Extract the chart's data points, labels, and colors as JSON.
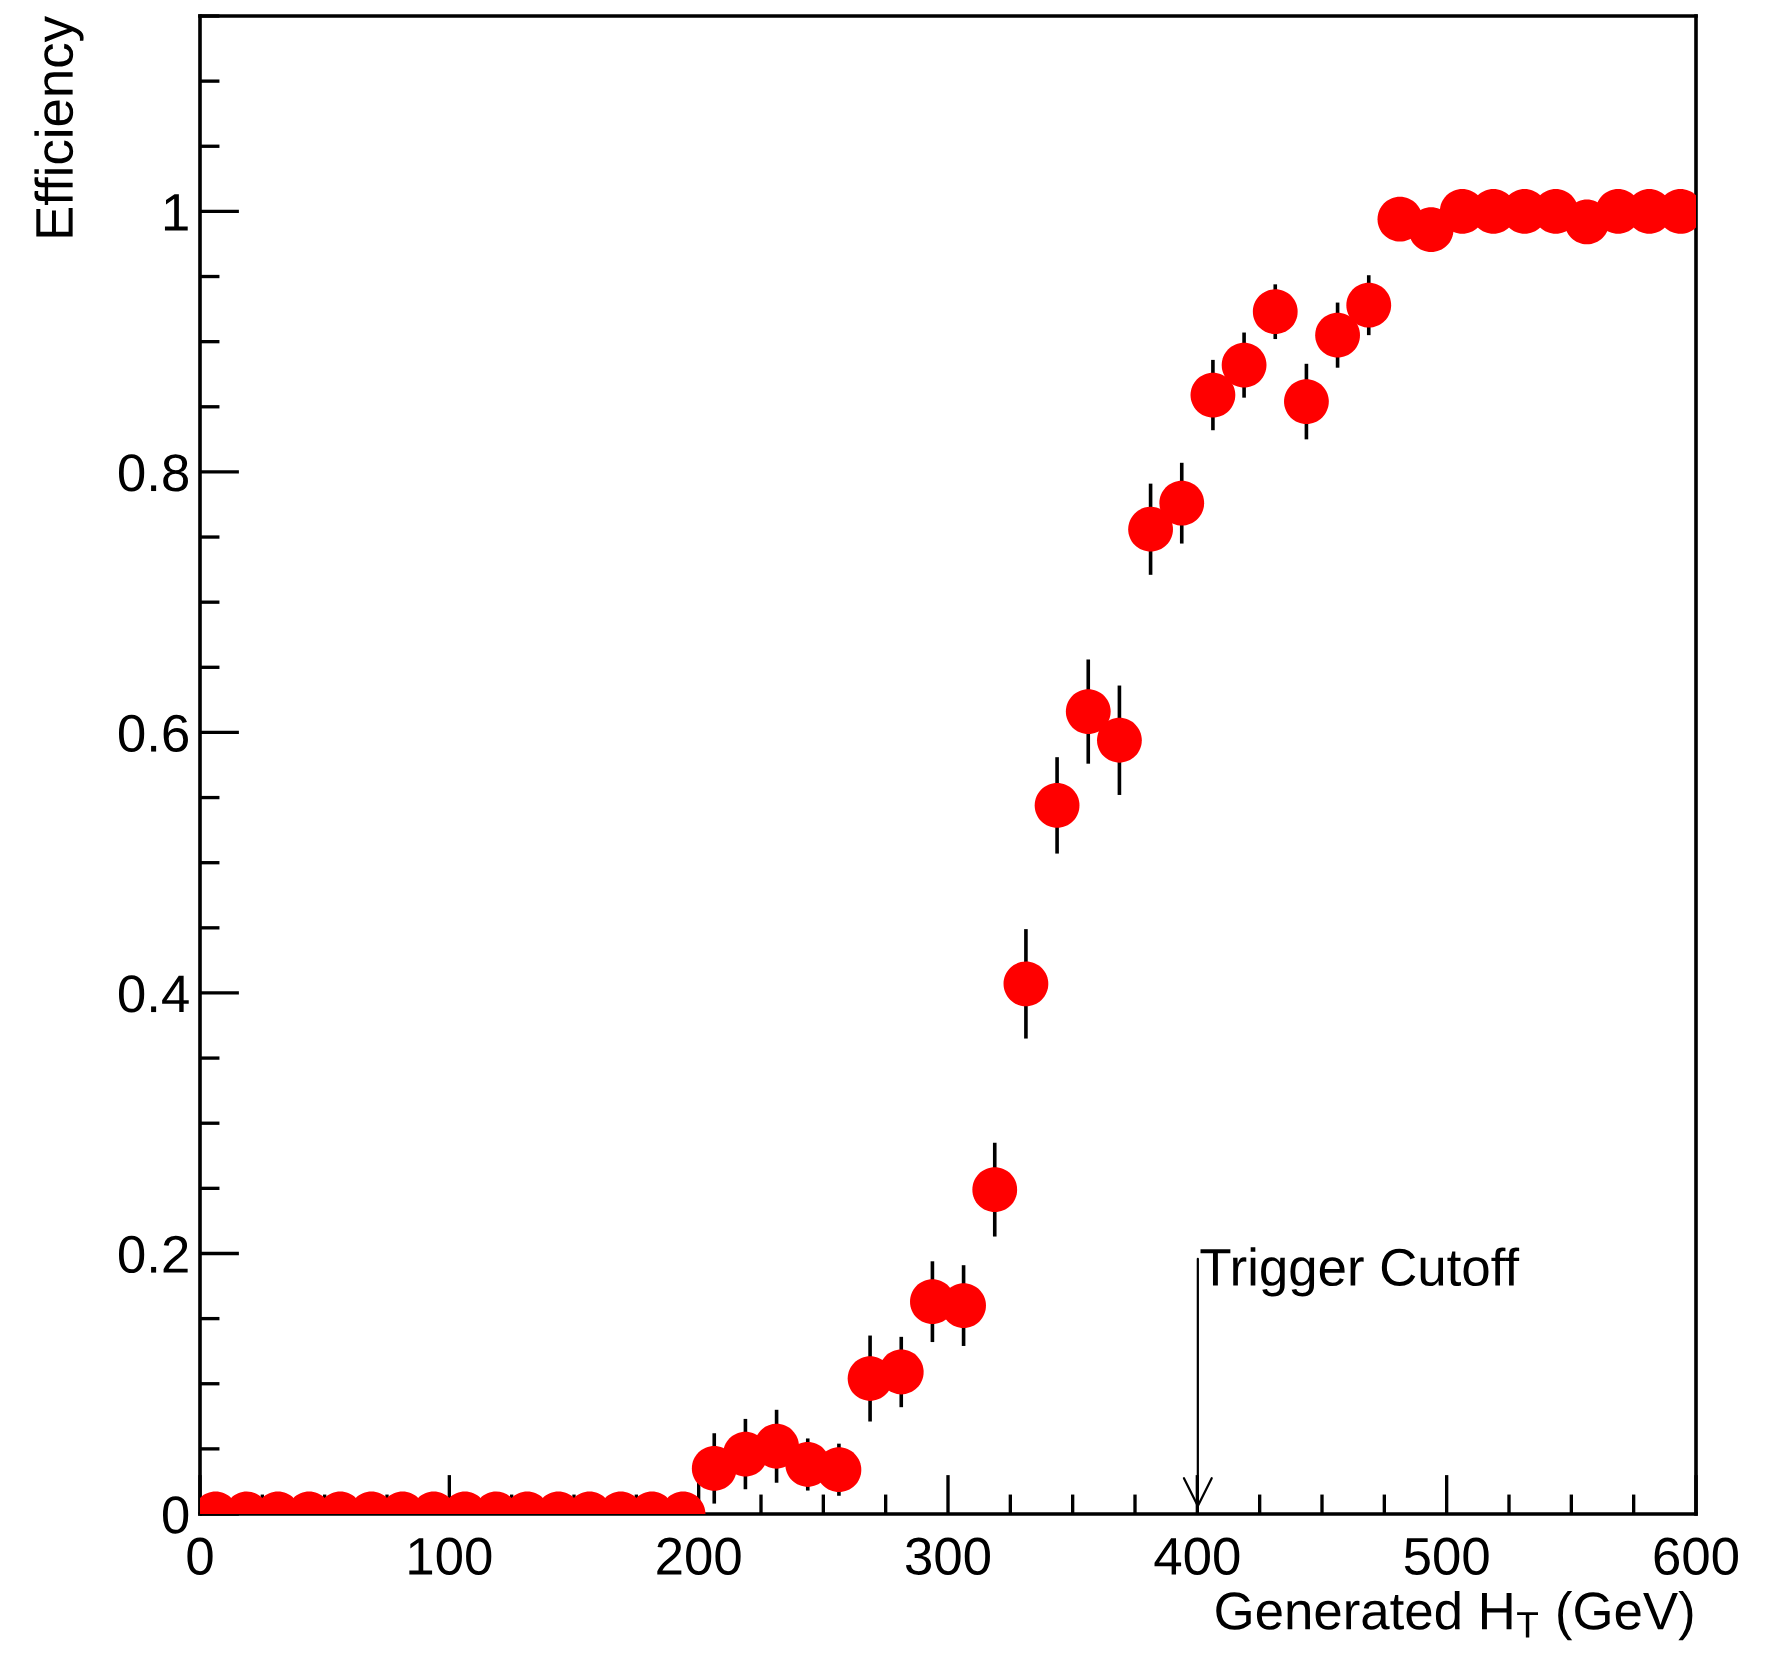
{
  "chart_data": {
    "type": "scatter",
    "xlabel": "Generated H$_{T}$ (GeV)",
    "ylabel": "Efficiency",
    "x": [
      6.25,
      18.75,
      31.25,
      43.75,
      56.25,
      68.75,
      81.25,
      93.75,
      106.25,
      118.75,
      131.25,
      143.75,
      156.25,
      168.75,
      181.25,
      193.75,
      206.25,
      218.75,
      231.25,
      243.75,
      256.25,
      268.75,
      281.25,
      293.75,
      306.25,
      318.75,
      331.25,
      343.75,
      356.25,
      368.75,
      381.25,
      393.75,
      406.25,
      418.75,
      431.25,
      443.75,
      456.25,
      468.75,
      481.25,
      493.75,
      506.25,
      518.75,
      531.25,
      543.75,
      556.25,
      568.75,
      581.25,
      593.75
    ],
    "series": [
      {
        "color": "#ff0000",
        "values": [
          0,
          0,
          0,
          0,
          0,
          0,
          0,
          0,
          0,
          0,
          0,
          0,
          0,
          0,
          0,
          0,
          0.035,
          0.046,
          0.052,
          0.038,
          0.034,
          0.104,
          0.109,
          0.163,
          0.16,
          0.249,
          0.407,
          0.544,
          0.616,
          0.594,
          0.756,
          0.776,
          0.859,
          0.882,
          0.923,
          0.854,
          0.905,
          0.928,
          0.994,
          0.986,
          1,
          1,
          1,
          1,
          0.992,
          1,
          1,
          1
        ],
        "errors": [
          null,
          null,
          null,
          null,
          null,
          null,
          null,
          null,
          null,
          null,
          null,
          null,
          null,
          null,
          null,
          null,
          0.027,
          0.027,
          0.028,
          0.02,
          0.02,
          0.033,
          0.027,
          0.031,
          0.031,
          0.036,
          0.042,
          0.037,
          0.04,
          0.042,
          0.035,
          0.031,
          0.027,
          0.025,
          0.021,
          0.029,
          0.025,
          0.023,
          null,
          null,
          null,
          null,
          null,
          null,
          null,
          null,
          null,
          null
        ]
      }
    ],
    "xlim": [
      0,
      600
    ],
    "xticks": [
      0,
      100,
      200,
      300,
      400,
      500,
      600
    ],
    "ylim": [
      0,
      1.15
    ],
    "yticks": [
      0,
      0.2,
      0.4,
      0.6,
      0.8,
      1
    ],
    "marker": "circle",
    "grid": false,
    "annotations": [
      "Trigger Cutoff"
    ]
  }
}
